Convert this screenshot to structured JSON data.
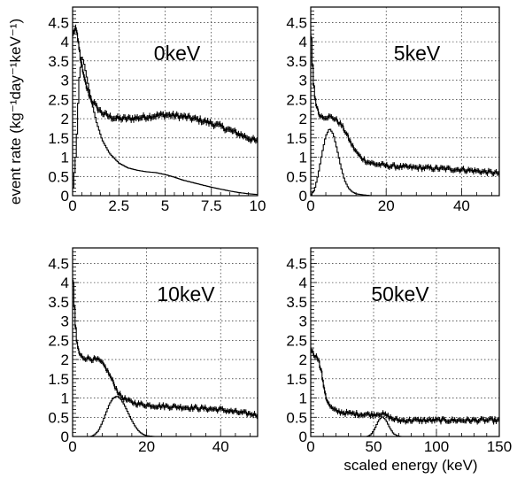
{
  "figure": {
    "ylabel": "event rate (kg⁻¹day⁻¹keV⁻¹)",
    "xlabel": "scaled energy (keV)"
  },
  "chart_data": [
    {
      "type": "line",
      "panel_label": "0keV",
      "xlim": [
        0,
        10
      ],
      "ylim": [
        0,
        4.9
      ],
      "xticks": [
        0,
        2.5,
        5,
        7.5,
        10
      ],
      "xtick_labels": [
        "0",
        "2.5",
        "5",
        "7.5",
        "10"
      ],
      "yticks": [
        0,
        0.5,
        1,
        1.5,
        2,
        2.5,
        3,
        3.5,
        4,
        4.5
      ],
      "ytick_labels": [
        "0",
        "0.5",
        "1",
        "1.5",
        "2",
        "2.5",
        "3",
        "3.5",
        "4",
        "4.5"
      ],
      "grid": true,
      "series": [
        {
          "noise": 0.06,
          "points": [
            [
              0.05,
              4.2
            ],
            [
              0.15,
              4.4
            ],
            [
              0.3,
              4.0
            ],
            [
              0.45,
              3.5
            ],
            [
              0.6,
              3.1
            ],
            [
              0.8,
              2.75
            ],
            [
              1.0,
              2.5
            ],
            [
              1.3,
              2.3
            ],
            [
              1.6,
              2.15
            ],
            [
              2.0,
              2.05
            ],
            [
              2.5,
              2.0
            ],
            [
              3.0,
              2.0
            ],
            [
              3.5,
              2.02
            ],
            [
              4.0,
              2.05
            ],
            [
              4.5,
              2.08
            ],
            [
              5.0,
              2.1
            ],
            [
              5.5,
              2.08
            ],
            [
              6.0,
              2.05
            ],
            [
              6.5,
              2.0
            ],
            [
              7.0,
              1.95
            ],
            [
              7.5,
              1.88
            ],
            [
              8.0,
              1.8
            ],
            [
              8.5,
              1.7
            ],
            [
              9.0,
              1.6
            ],
            [
              9.5,
              1.5
            ],
            [
              10.0,
              1.4
            ]
          ]
        },
        {
          "noise": 0.0,
          "points": [
            [
              0.0,
              0.0
            ],
            [
              0.2,
              1.2
            ],
            [
              0.35,
              3.0
            ],
            [
              0.5,
              3.6
            ],
            [
              0.6,
              3.5
            ],
            [
              0.8,
              3.0
            ],
            [
              1.0,
              2.5
            ],
            [
              1.3,
              1.9
            ],
            [
              1.6,
              1.45
            ],
            [
              2.0,
              1.1
            ],
            [
              2.5,
              0.85
            ],
            [
              3.0,
              0.72
            ],
            [
              3.5,
              0.66
            ],
            [
              4.0,
              0.62
            ],
            [
              4.5,
              0.6
            ],
            [
              5.0,
              0.55
            ],
            [
              5.5,
              0.48
            ],
            [
              6.0,
              0.4
            ],
            [
              6.5,
              0.34
            ],
            [
              7.0,
              0.28
            ],
            [
              7.5,
              0.22
            ],
            [
              8.0,
              0.17
            ],
            [
              8.5,
              0.12
            ],
            [
              9.0,
              0.08
            ],
            [
              9.5,
              0.05
            ],
            [
              10.0,
              0.03
            ]
          ]
        }
      ]
    },
    {
      "type": "line",
      "panel_label": "5keV",
      "xlim": [
        0,
        50
      ],
      "ylim": [
        0,
        4.9
      ],
      "xticks": [
        0,
        20,
        40
      ],
      "xtick_labels": [
        "0",
        "20",
        "40"
      ],
      "yticks": [
        0,
        0.5,
        1,
        1.5,
        2,
        2.5,
        3,
        3.5,
        4,
        4.5
      ],
      "ytick_labels": [
        "0",
        "0.5",
        "1",
        "1.5",
        "2",
        "2.5",
        "3",
        "3.5",
        "4",
        "4.5"
      ],
      "grid": true,
      "series": [
        {
          "noise": 0.05,
          "points": [
            [
              0.0,
              4.4
            ],
            [
              0.3,
              3.8
            ],
            [
              0.7,
              3.0
            ],
            [
              1.2,
              2.5
            ],
            [
              2.0,
              2.15
            ],
            [
              3.0,
              2.05
            ],
            [
              4.0,
              2.05
            ],
            [
              5.0,
              2.05
            ],
            [
              6.0,
              2.02
            ],
            [
              7.0,
              1.95
            ],
            [
              8.0,
              1.85
            ],
            [
              9.0,
              1.7
            ],
            [
              10.0,
              1.5
            ],
            [
              11.0,
              1.3
            ],
            [
              12.0,
              1.15
            ],
            [
              13.0,
              1.02
            ],
            [
              14.0,
              0.95
            ],
            [
              15.0,
              0.88
            ],
            [
              17.0,
              0.82
            ],
            [
              20.0,
              0.78
            ],
            [
              25.0,
              0.74
            ],
            [
              30.0,
              0.72
            ],
            [
              35.0,
              0.7
            ],
            [
              40.0,
              0.68
            ],
            [
              45.0,
              0.63
            ],
            [
              50.0,
              0.58
            ]
          ]
        },
        {
          "noise": 0.0,
          "points": [
            [
              0.0,
              0.0
            ],
            [
              1.0,
              0.15
            ],
            [
              2.0,
              0.55
            ],
            [
              3.0,
              1.1
            ],
            [
              4.0,
              1.55
            ],
            [
              5.0,
              1.75
            ],
            [
              6.0,
              1.6
            ],
            [
              7.0,
              1.2
            ],
            [
              8.0,
              0.75
            ],
            [
              9.0,
              0.4
            ],
            [
              10.0,
              0.2
            ],
            [
              11.0,
              0.1
            ],
            [
              12.0,
              0.05
            ],
            [
              14.0,
              0.02
            ],
            [
              16.0,
              0.0
            ],
            [
              50.0,
              0.0
            ]
          ]
        }
      ]
    },
    {
      "type": "line",
      "panel_label": "10keV",
      "xlim": [
        0,
        50
      ],
      "ylim": [
        0,
        4.9
      ],
      "xticks": [
        0,
        20,
        40
      ],
      "xtick_labels": [
        "0",
        "20",
        "40"
      ],
      "yticks": [
        0,
        0.5,
        1,
        1.5,
        2,
        2.5,
        3,
        3.5,
        4,
        4.5
      ],
      "ytick_labels": [
        "0",
        "0.5",
        "1",
        "1.5",
        "2",
        "2.5",
        "3",
        "3.5",
        "4",
        "4.5"
      ],
      "grid": true,
      "series": [
        {
          "noise": 0.05,
          "points": [
            [
              0.0,
              4.3
            ],
            [
              0.3,
              3.7
            ],
            [
              0.7,
              3.0
            ],
            [
              1.2,
              2.4
            ],
            [
              2.0,
              2.1
            ],
            [
              3.0,
              2.05
            ],
            [
              5.0,
              2.02
            ],
            [
              7.0,
              1.98
            ],
            [
              8.0,
              1.9
            ],
            [
              9.0,
              1.78
            ],
            [
              10.0,
              1.6
            ],
            [
              11.0,
              1.4
            ],
            [
              12.0,
              1.2
            ],
            [
              13.0,
              1.05
            ],
            [
              15.0,
              0.92
            ],
            [
              18.0,
              0.84
            ],
            [
              22.0,
              0.8
            ],
            [
              30.0,
              0.76
            ],
            [
              40.0,
              0.7
            ],
            [
              45.0,
              0.62
            ],
            [
              50.0,
              0.56
            ]
          ]
        },
        {
          "noise": 0.0,
          "points": [
            [
              0.0,
              0.0
            ],
            [
              5.0,
              0.0
            ],
            [
              6.0,
              0.05
            ],
            [
              7.0,
              0.15
            ],
            [
              8.0,
              0.35
            ],
            [
              9.0,
              0.6
            ],
            [
              10.0,
              0.85
            ],
            [
              11.0,
              1.0
            ],
            [
              12.0,
              1.05
            ],
            [
              13.0,
              0.98
            ],
            [
              14.0,
              0.82
            ],
            [
              15.0,
              0.62
            ],
            [
              16.0,
              0.42
            ],
            [
              17.0,
              0.25
            ],
            [
              18.0,
              0.13
            ],
            [
              19.0,
              0.06
            ],
            [
              20.0,
              0.02
            ],
            [
              22.0,
              0.0
            ],
            [
              50.0,
              0.0
            ]
          ]
        }
      ]
    },
    {
      "type": "line",
      "panel_label": "50keV",
      "xlim": [
        0,
        150
      ],
      "ylim": [
        0,
        4.9
      ],
      "xticks": [
        0,
        50,
        100,
        150
      ],
      "xtick_labels": [
        "0",
        "50",
        "100",
        "150"
      ],
      "yticks": [
        0,
        0.5,
        1,
        1.5,
        2,
        2.5,
        3,
        3.5,
        4,
        4.5
      ],
      "ytick_labels": [
        "0",
        "0.5",
        "1",
        "1.5",
        "2",
        "2.5",
        "3",
        "3.5",
        "4",
        "4.5"
      ],
      "grid": true,
      "series": [
        {
          "noise": 0.05,
          "points": [
            [
              0.0,
              2.3
            ],
            [
              2.0,
              2.15
            ],
            [
              4.0,
              2.1
            ],
            [
              6.0,
              2.0
            ],
            [
              8.0,
              1.75
            ],
            [
              10.0,
              1.4
            ],
            [
              12.0,
              1.05
            ],
            [
              14.0,
              0.85
            ],
            [
              17.0,
              0.72
            ],
            [
              20.0,
              0.66
            ],
            [
              30.0,
              0.6
            ],
            [
              40.0,
              0.58
            ],
            [
              50.0,
              0.57
            ],
            [
              55.0,
              0.6
            ],
            [
              60.0,
              0.55
            ],
            [
              65.0,
              0.46
            ],
            [
              70.0,
              0.42
            ],
            [
              100.0,
              0.42
            ],
            [
              125.0,
              0.42
            ],
            [
              150.0,
              0.42
            ]
          ]
        },
        {
          "noise": 0.0,
          "points": [
            [
              0.0,
              0.0
            ],
            [
              45.0,
              0.0
            ],
            [
              48.0,
              0.05
            ],
            [
              51.0,
              0.2
            ],
            [
              54.0,
              0.42
            ],
            [
              57.0,
              0.52
            ],
            [
              60.0,
              0.42
            ],
            [
              63.0,
              0.22
            ],
            [
              66.0,
              0.07
            ],
            [
              69.0,
              0.02
            ],
            [
              72.0,
              0.0
            ],
            [
              150.0,
              0.0
            ]
          ]
        }
      ]
    }
  ]
}
